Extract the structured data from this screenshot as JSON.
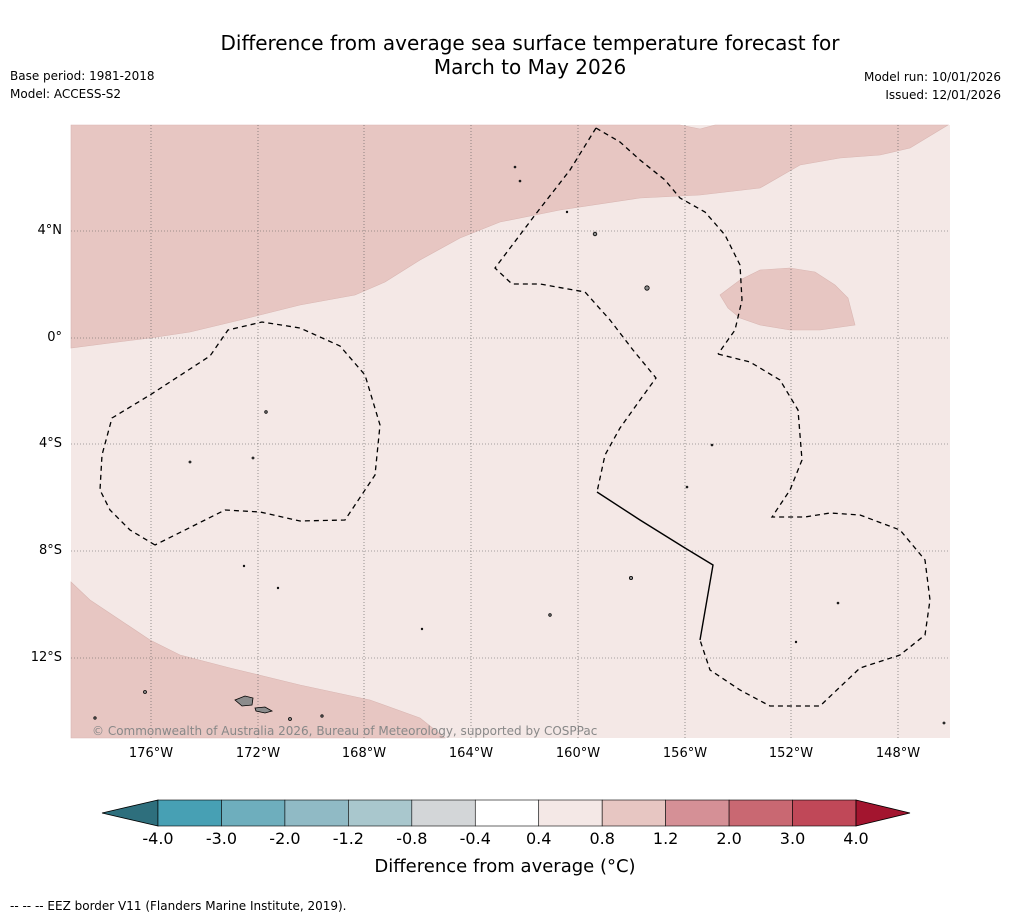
{
  "title": {
    "line1": "Difference from average sea surface temperature forecast for",
    "line2": "March to May 2026"
  },
  "meta_left": {
    "base_period": "Base period: 1981-2018",
    "model": "Model: ACCESS-S2"
  },
  "meta_right": {
    "model_run": "Model run: 10/01/2026",
    "issued": "Issued: 12/01/2026"
  },
  "map": {
    "lat_labels": [
      "4°N",
      "0°",
      "4°S",
      "8°S",
      "12°S"
    ],
    "lon_labels": [
      "176°W",
      "172°W",
      "168°W",
      "164°W",
      "160°W",
      "156°W",
      "152°W",
      "148°W"
    ],
    "copyright": "© Commonwealth of Australia 2026, Bureau of Meteorology, supported by COSPPac",
    "colors": {
      "anomaly_04_08": "#f4e8e6",
      "anomaly_08_12": "#e7c6c2",
      "land": "#8c8c8c"
    }
  },
  "colorbar": {
    "title": "Difference from average (°C)",
    "tick_labels": [
      "-4.0",
      "-3.0",
      "-2.0",
      "-1.2",
      "-0.8",
      "-0.4",
      "0.4",
      "0.8",
      "1.2",
      "2.0",
      "3.0",
      "4.0"
    ],
    "bin_colors": [
      "#2e6f7d",
      "#47a0b4",
      "#6eaebd",
      "#90bac5",
      "#a9c7cd",
      "#d3d6d8",
      "#ffffff",
      "#f4e8e6",
      "#e7c6c2",
      "#d59096",
      "#c96872",
      "#c04858",
      "#a3152f"
    ]
  },
  "footnote": "--  --  -- EEZ border V11 (Flanders Marine Institute, 2019)."
}
